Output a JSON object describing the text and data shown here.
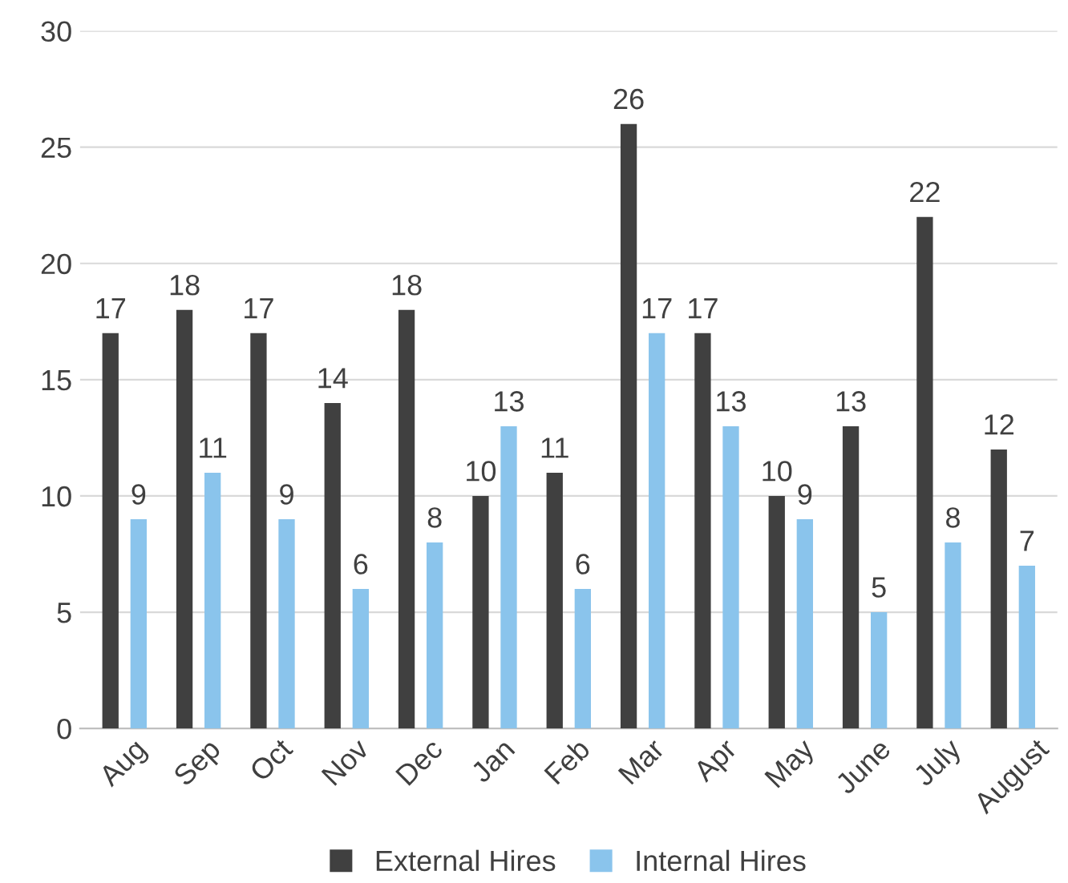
{
  "chart_data": {
    "type": "bar",
    "categories": [
      "Aug",
      "Sep",
      "Oct",
      "Nov",
      "Dec",
      "Jan",
      "Feb",
      "Mar",
      "Apr",
      "May",
      "June",
      "July",
      "August"
    ],
    "series": [
      {
        "name": "External Hires",
        "color": "#404040",
        "values": [
          17,
          18,
          17,
          14,
          18,
          10,
          11,
          26,
          17,
          10,
          13,
          22,
          12
        ]
      },
      {
        "name": "Internal Hires",
        "color": "#8ac4ec",
        "values": [
          9,
          11,
          9,
          6,
          8,
          13,
          6,
          17,
          13,
          9,
          5,
          8,
          7
        ]
      }
    ],
    "ylim": [
      0,
      30
    ],
    "yticks": [
      0,
      5,
      10,
      15,
      20,
      25,
      30
    ],
    "grid": "y",
    "legend": "bottom",
    "data_labels": true
  }
}
